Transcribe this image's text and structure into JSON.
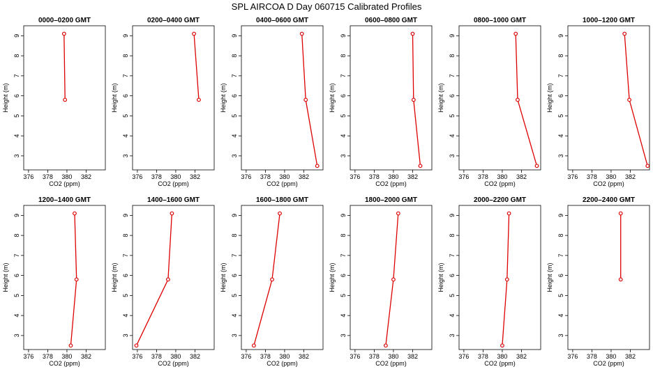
{
  "figure": {
    "title": "SPL AIRCOA D  Day 060715  Calibrated Profiles"
  },
  "colors": {
    "series": "#dd0000",
    "axes": "#000000"
  },
  "chart_data": [
    {
      "type": "line",
      "title": "0000–0200 GMT",
      "xlabel": "CO2 (ppm)",
      "ylabel": "Height (m)",
      "xlim": [
        375.5,
        384.0
      ],
      "ylim": [
        2.3,
        9.5
      ],
      "xticks": [
        376,
        378,
        380,
        382
      ],
      "yticks": [
        3,
        4,
        5,
        6,
        7,
        8,
        9
      ],
      "grid": false,
      "points": [
        {
          "x": 379.7,
          "y": 9.1
        },
        {
          "x": 379.8,
          "y": 5.8
        }
      ]
    },
    {
      "type": "line",
      "title": "0200–0400 GMT",
      "xlabel": "CO2 (ppm)",
      "ylabel": "Height (m)",
      "xlim": [
        375.5,
        384.0
      ],
      "ylim": [
        2.3,
        9.5
      ],
      "xticks": [
        376,
        378,
        380,
        382
      ],
      "yticks": [
        3,
        4,
        5,
        6,
        7,
        8,
        9
      ],
      "grid": false,
      "points": [
        {
          "x": 381.9,
          "y": 9.1
        },
        {
          "x": 382.4,
          "y": 5.8
        }
      ]
    },
    {
      "type": "line",
      "title": "0400–0600 GMT",
      "xlabel": "CO2 (ppm)",
      "ylabel": "Height (m)",
      "xlim": [
        375.5,
        384.0
      ],
      "ylim": [
        2.3,
        9.5
      ],
      "xticks": [
        376,
        378,
        380,
        382
      ],
      "yticks": [
        3,
        4,
        5,
        6,
        7,
        8,
        9
      ],
      "grid": false,
      "points": [
        {
          "x": 381.8,
          "y": 9.1
        },
        {
          "x": 382.2,
          "y": 5.8
        },
        {
          "x": 383.4,
          "y": 2.5
        }
      ]
    },
    {
      "type": "line",
      "title": "0600–0800 GMT",
      "xlabel": "CO2 (ppm)",
      "ylabel": "Height (m)",
      "xlim": [
        375.5,
        384.0
      ],
      "ylim": [
        2.3,
        9.5
      ],
      "xticks": [
        376,
        378,
        380,
        382
      ],
      "yticks": [
        3,
        4,
        5,
        6,
        7,
        8,
        9
      ],
      "grid": false,
      "points": [
        {
          "x": 382.0,
          "y": 9.1
        },
        {
          "x": 382.1,
          "y": 5.8
        },
        {
          "x": 382.8,
          "y": 2.5
        }
      ]
    },
    {
      "type": "line",
      "title": "0800–1000 GMT",
      "xlabel": "CO2 (ppm)",
      "ylabel": "Height (m)",
      "xlim": [
        375.5,
        384.0
      ],
      "ylim": [
        2.3,
        9.5
      ],
      "xticks": [
        376,
        378,
        380,
        382
      ],
      "yticks": [
        3,
        4,
        5,
        6,
        7,
        8,
        9
      ],
      "grid": false,
      "points": [
        {
          "x": 381.4,
          "y": 9.1
        },
        {
          "x": 381.6,
          "y": 5.8
        },
        {
          "x": 383.6,
          "y": 2.5
        }
      ]
    },
    {
      "type": "line",
      "title": "1000–1200 GMT",
      "xlabel": "CO2 (ppm)",
      "ylabel": "Height (m)",
      "xlim": [
        375.5,
        384.0
      ],
      "ylim": [
        2.3,
        9.5
      ],
      "xticks": [
        376,
        378,
        380,
        382
      ],
      "yticks": [
        3,
        4,
        5,
        6,
        7,
        8,
        9
      ],
      "grid": false,
      "points": [
        {
          "x": 381.4,
          "y": 9.1
        },
        {
          "x": 381.9,
          "y": 5.8
        },
        {
          "x": 383.8,
          "y": 2.5
        }
      ]
    },
    {
      "type": "line",
      "title": "1200–1400 GMT",
      "xlabel": "CO2 (ppm)",
      "ylabel": "Height (m)",
      "xlim": [
        375.5,
        384.0
      ],
      "ylim": [
        2.3,
        9.5
      ],
      "xticks": [
        376,
        378,
        380,
        382
      ],
      "yticks": [
        3,
        4,
        5,
        6,
        7,
        8,
        9
      ],
      "grid": false,
      "points": [
        {
          "x": 380.8,
          "y": 9.1
        },
        {
          "x": 381.0,
          "y": 5.8
        },
        {
          "x": 380.4,
          "y": 2.5
        }
      ]
    },
    {
      "type": "line",
      "title": "1400–1600 GMT",
      "xlabel": "CO2 (ppm)",
      "ylabel": "Height (m)",
      "xlim": [
        375.5,
        384.0
      ],
      "ylim": [
        2.3,
        9.5
      ],
      "xticks": [
        376,
        378,
        380,
        382
      ],
      "yticks": [
        3,
        4,
        5,
        6,
        7,
        8,
        9
      ],
      "grid": false,
      "points": [
        {
          "x": 379.6,
          "y": 9.1
        },
        {
          "x": 379.2,
          "y": 5.8
        },
        {
          "x": 375.9,
          "y": 2.5
        }
      ]
    },
    {
      "type": "line",
      "title": "1600–1800 GMT",
      "xlabel": "CO2 (ppm)",
      "ylabel": "Height (m)",
      "xlim": [
        375.5,
        384.0
      ],
      "ylim": [
        2.3,
        9.5
      ],
      "xticks": [
        376,
        378,
        380,
        382
      ],
      "yticks": [
        3,
        4,
        5,
        6,
        7,
        8,
        9
      ],
      "grid": false,
      "points": [
        {
          "x": 379.5,
          "y": 9.1
        },
        {
          "x": 378.7,
          "y": 5.8
        },
        {
          "x": 376.8,
          "y": 2.5
        }
      ]
    },
    {
      "type": "line",
      "title": "1800–2000 GMT",
      "xlabel": "CO2 (ppm)",
      "ylabel": "Height (m)",
      "xlim": [
        375.5,
        384.0
      ],
      "ylim": [
        2.3,
        9.5
      ],
      "xticks": [
        376,
        378,
        380,
        382
      ],
      "yticks": [
        3,
        4,
        5,
        6,
        7,
        8,
        9
      ],
      "grid": false,
      "points": [
        {
          "x": 380.5,
          "y": 9.1
        },
        {
          "x": 380.0,
          "y": 5.8
        },
        {
          "x": 379.2,
          "y": 2.5
        }
      ]
    },
    {
      "type": "line",
      "title": "2000–2200 GMT",
      "xlabel": "CO2 (ppm)",
      "ylabel": "Height (m)",
      "xlim": [
        375.5,
        384.0
      ],
      "ylim": [
        2.3,
        9.5
      ],
      "xticks": [
        376,
        378,
        380,
        382
      ],
      "yticks": [
        3,
        4,
        5,
        6,
        7,
        8,
        9
      ],
      "grid": false,
      "points": [
        {
          "x": 380.7,
          "y": 9.1
        },
        {
          "x": 380.5,
          "y": 5.8
        },
        {
          "x": 380.0,
          "y": 2.5
        }
      ]
    },
    {
      "type": "line",
      "title": "2200–2400 GMT",
      "xlabel": "CO2 (ppm)",
      "ylabel": "Height (m)",
      "xlim": [
        375.5,
        384.0
      ],
      "ylim": [
        2.3,
        9.5
      ],
      "xticks": [
        376,
        378,
        380,
        382
      ],
      "yticks": [
        3,
        4,
        5,
        6,
        7,
        8,
        9
      ],
      "grid": false,
      "points": [
        {
          "x": 381.0,
          "y": 9.1
        },
        {
          "x": 381.0,
          "y": 5.8
        }
      ]
    }
  ]
}
